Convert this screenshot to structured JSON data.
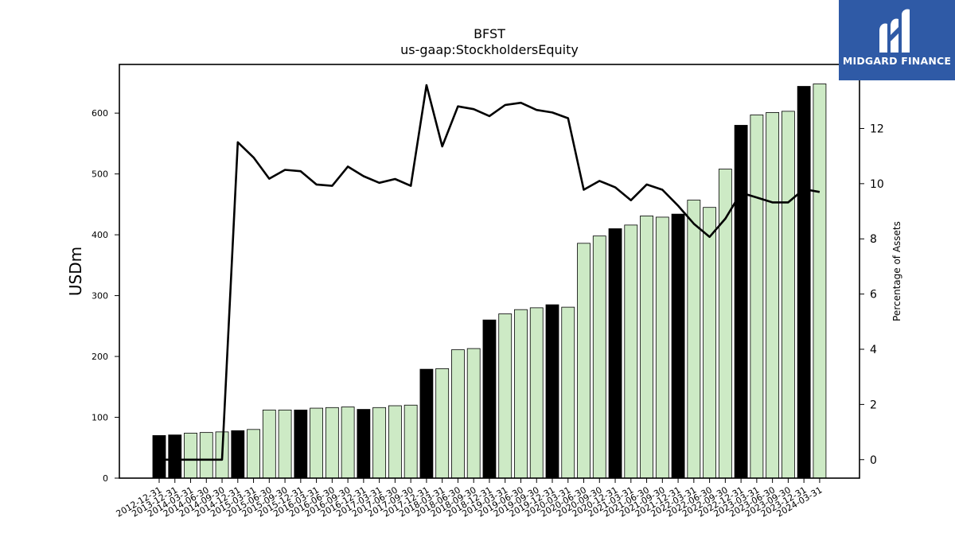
{
  "chart_data": {
    "type": "bar",
    "title": "BFST",
    "subtitle": "us-gaap:StockholdersEquity",
    "ylabel": "USDm",
    "y2label": "Percentage of Assets",
    "ylim": [
      0,
      680
    ],
    "y2lim": [
      -0.67,
      14.32
    ],
    "yticks": [
      0,
      100,
      200,
      300,
      400,
      500,
      600
    ],
    "y2ticks": [
      0,
      2,
      4,
      6,
      8,
      10,
      12
    ],
    "categories": [
      "2012-12-31",
      "2013-12-31",
      "2014-03-31",
      "2014-06-30",
      "2014-09-30",
      "2014-12-31",
      "2015-03-31",
      "2015-06-30",
      "2015-09-30",
      "2015-12-31",
      "2016-03-31",
      "2016-06-30",
      "2016-09-30",
      "2016-12-31",
      "2017-03-31",
      "2017-06-30",
      "2017-09-30",
      "2017-12-31",
      "2018-03-31",
      "2018-06-30",
      "2018-09-30",
      "2018-12-31",
      "2019-03-31",
      "2019-06-30",
      "2019-09-30",
      "2019-12-31",
      "2020-03-31",
      "2020-06-30",
      "2020-09-30",
      "2020-12-31",
      "2021-03-31",
      "2021-06-30",
      "2021-09-30",
      "2021-12-31",
      "2022-03-31",
      "2022-06-30",
      "2022-09-30",
      "2022-12-31",
      "2023-03-31",
      "2023-06-30",
      "2023-09-30",
      "2023-12-31",
      "2024-03-31"
    ],
    "series": [
      {
        "type": "bar",
        "values": [
          70,
          71,
          74,
          75,
          76,
          78,
          80,
          112,
          112,
          112,
          115,
          116,
          117,
          113,
          116,
          119,
          120,
          179,
          180,
          211,
          213,
          260,
          270,
          277,
          280,
          285,
          281,
          386,
          398,
          410,
          416,
          431,
          429,
          434,
          457,
          445,
          508,
          580,
          597,
          601,
          603,
          644,
          648
        ],
        "annual_highlight": [
          true,
          true,
          false,
          false,
          false,
          true,
          false,
          false,
          false,
          true,
          false,
          false,
          false,
          true,
          false,
          false,
          false,
          true,
          false,
          false,
          false,
          true,
          false,
          false,
          false,
          true,
          false,
          false,
          false,
          true,
          false,
          false,
          false,
          true,
          false,
          false,
          false,
          true,
          false,
          false,
          false,
          true,
          false
        ]
      },
      {
        "type": "line",
        "axis": "right",
        "values": [
          0.0,
          0.0,
          0.0,
          0.0,
          0.0,
          11.5,
          10.95,
          10.18,
          10.5,
          10.45,
          9.97,
          9.92,
          10.62,
          10.27,
          10.03,
          10.17,
          9.92,
          13.57,
          11.35,
          12.8,
          12.7,
          12.45,
          12.85,
          12.93,
          12.67,
          12.58,
          12.37,
          9.78,
          10.1,
          9.87,
          9.4,
          9.97,
          9.78,
          9.2,
          8.55,
          8.07,
          8.73,
          9.67,
          9.5,
          9.32,
          9.32,
          9.8,
          9.7
        ]
      }
    ],
    "colors": {
      "bar_highlight": "#000000",
      "bar_normal": "#cdeac5",
      "line": "#000000"
    },
    "grid": false,
    "legend": "none"
  },
  "logo": {
    "text": "MIDGARD FINANCE",
    "icon": "midgard-logo-icon"
  }
}
